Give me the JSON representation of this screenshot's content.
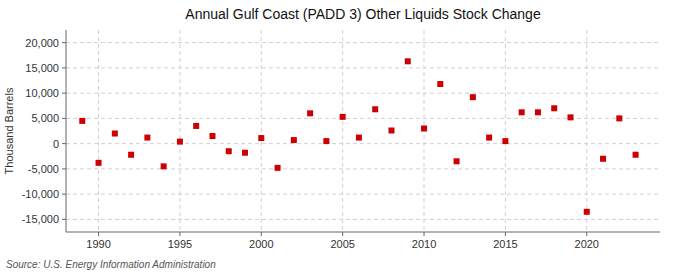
{
  "chart_data": {
    "type": "scatter",
    "title": "Annual Gulf Coast (PADD 3) Other Liquids Stock Change",
    "y_label": "Thousand Barrels",
    "annotations": [
      "Source: U.S. Energy Information Administration"
    ],
    "x": [
      1989,
      1990,
      1991,
      1992,
      1993,
      1994,
      1995,
      1996,
      1997,
      1998,
      1999,
      2000,
      2001,
      2002,
      2003,
      2004,
      2005,
      2006,
      2007,
      2008,
      2009,
      2010,
      2011,
      2012,
      2013,
      2014,
      2015,
      2016,
      2017,
      2018,
      2019,
      2020,
      2021,
      2022,
      2023
    ],
    "values": [
      4500,
      -3800,
      2000,
      -2200,
      1200,
      -4500,
      400,
      3500,
      1500,
      -1500,
      -1800,
      1100,
      -4800,
      700,
      6000,
      500,
      5300,
      1200,
      6800,
      2600,
      16300,
      3000,
      11800,
      -3500,
      9200,
      1200,
      500,
      6200,
      6200,
      7000,
      5200,
      -13500,
      -3000,
      5000,
      -2200
    ],
    "color": "#cc0000",
    "marker": "square",
    "grid": true,
    "xlim": [
      1988.0,
      2024.5
    ],
    "xticks": [
      1990,
      1995,
      2000,
      2005,
      2010,
      2015,
      2020
    ],
    "ylim": [
      -17500,
      22500
    ],
    "yticks": [
      {
        "value": -15000,
        "label": "-15,000"
      },
      {
        "value": -10000,
        "label": "-10,000"
      },
      {
        "value": -5000,
        "label": "-5,000"
      },
      0,
      {
        "value": 5000,
        "label": "5,000"
      },
      {
        "value": 10000,
        "label": "10,000"
      },
      {
        "value": 15000,
        "label": "15,000"
      },
      {
        "value": 20000,
        "label": "20,000"
      }
    ]
  }
}
